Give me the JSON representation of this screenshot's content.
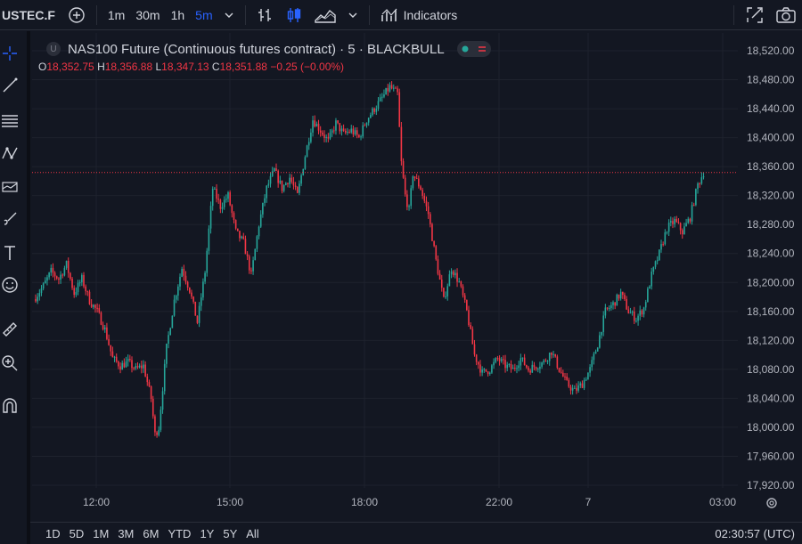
{
  "toolbar": {
    "symbol": "USTEC.F",
    "intervals": [
      "1m",
      "30m",
      "1h",
      "5m"
    ],
    "active_interval": "5m",
    "indicators_label": "Indicators"
  },
  "legend": {
    "title": "NAS100 Future (Continuous futures contract) · 5 · BLACKBULL",
    "u_badge": "U",
    "o_label": "O",
    "o_value": "18,352.75",
    "h_label": "H",
    "h_value": "18,356.88",
    "l_label": "L",
    "l_value": "18,347.13",
    "c_label": "C",
    "c_value": "18,351.88",
    "change": "−0.25 (−0.00%)"
  },
  "price_axis": {
    "ticks": [
      "18,520.00",
      "18,480.00",
      "18,440.00",
      "18,400.00",
      "18,360.00",
      "18,320.00",
      "18,280.00",
      "18,240.00",
      "18,200.00",
      "18,160.00",
      "18,120.00",
      "18,080.00",
      "18,040.00",
      "18,000.00",
      "17,960.00",
      "17,920.00"
    ],
    "last_price": "18,351.88"
  },
  "time_axis": {
    "ticks": [
      "12:00",
      "15:00",
      "18:00",
      "22:00",
      "7",
      "03:00"
    ]
  },
  "bottom": {
    "ranges": [
      "1D",
      "5D",
      "1M",
      "3M",
      "6M",
      "YTD",
      "1Y",
      "5Y",
      "All"
    ],
    "clock": "02:30:57 (UTC)"
  },
  "colors": {
    "up": "#26a69a",
    "down": "#f23645",
    "accent": "#2962ff",
    "background": "#131722"
  },
  "chart_data": {
    "type": "candlestick",
    "ylim": [
      17910,
      18530
    ],
    "price_line": 18351.88,
    "x_ticks": [
      "12:00",
      "15:00",
      "18:00",
      "22:00",
      "7",
      "03:00"
    ],
    "close_path": [
      [
        0,
        18180
      ],
      [
        4,
        18195
      ],
      [
        8,
        18215
      ],
      [
        12,
        18205
      ],
      [
        16,
        18225
      ],
      [
        20,
        18185
      ],
      [
        24,
        18205
      ],
      [
        28,
        18175
      ],
      [
        32,
        18160
      ],
      [
        36,
        18135
      ],
      [
        40,
        18095
      ],
      [
        44,
        18085
      ],
      [
        48,
        18090
      ],
      [
        52,
        18080
      ],
      [
        56,
        18085
      ],
      [
        60,
        18040
      ],
      [
        62,
        17990
      ],
      [
        64,
        18000
      ],
      [
        68,
        18110
      ],
      [
        72,
        18175
      ],
      [
        76,
        18220
      ],
      [
        80,
        18190
      ],
      [
        84,
        18145
      ],
      [
        88,
        18215
      ],
      [
        92,
        18330
      ],
      [
        96,
        18305
      ],
      [
        100,
        18320
      ],
      [
        104,
        18270
      ],
      [
        108,
        18255
      ],
      [
        112,
        18210
      ],
      [
        116,
        18280
      ],
      [
        120,
        18330
      ],
      [
        124,
        18355
      ],
      [
        128,
        18330
      ],
      [
        132,
        18345
      ],
      [
        136,
        18320
      ],
      [
        140,
        18375
      ],
      [
        144,
        18425
      ],
      [
        148,
        18410
      ],
      [
        152,
        18395
      ],
      [
        156,
        18420
      ],
      [
        160,
        18405
      ],
      [
        164,
        18410
      ],
      [
        168,
        18400
      ],
      [
        172,
        18425
      ],
      [
        176,
        18440
      ],
      [
        180,
        18455
      ],
      [
        184,
        18470
      ],
      [
        188,
        18460
      ],
      [
        190,
        18365
      ],
      [
        192,
        18320
      ],
      [
        194,
        18300
      ],
      [
        196,
        18350
      ],
      [
        200,
        18330
      ],
      [
        204,
        18295
      ],
      [
        208,
        18230
      ],
      [
        212,
        18175
      ],
      [
        216,
        18220
      ],
      [
        220,
        18200
      ],
      [
        224,
        18160
      ],
      [
        228,
        18100
      ],
      [
        232,
        18075
      ],
      [
        236,
        18080
      ],
      [
        240,
        18095
      ],
      [
        244,
        18085
      ],
      [
        248,
        18080
      ],
      [
        252,
        18095
      ],
      [
        256,
        18080
      ],
      [
        260,
        18085
      ],
      [
        264,
        18090
      ],
      [
        268,
        18105
      ],
      [
        272,
        18080
      ],
      [
        276,
        18060
      ],
      [
        280,
        18050
      ],
      [
        284,
        18060
      ],
      [
        288,
        18080
      ],
      [
        292,
        18115
      ],
      [
        296,
        18160
      ],
      [
        300,
        18170
      ],
      [
        304,
        18185
      ],
      [
        308,
        18160
      ],
      [
        312,
        18150
      ],
      [
        316,
        18165
      ],
      [
        320,
        18210
      ],
      [
        324,
        18240
      ],
      [
        328,
        18275
      ],
      [
        332,
        18285
      ],
      [
        336,
        18270
      ],
      [
        340,
        18290
      ],
      [
        344,
        18335
      ],
      [
        347,
        18352
      ]
    ]
  }
}
